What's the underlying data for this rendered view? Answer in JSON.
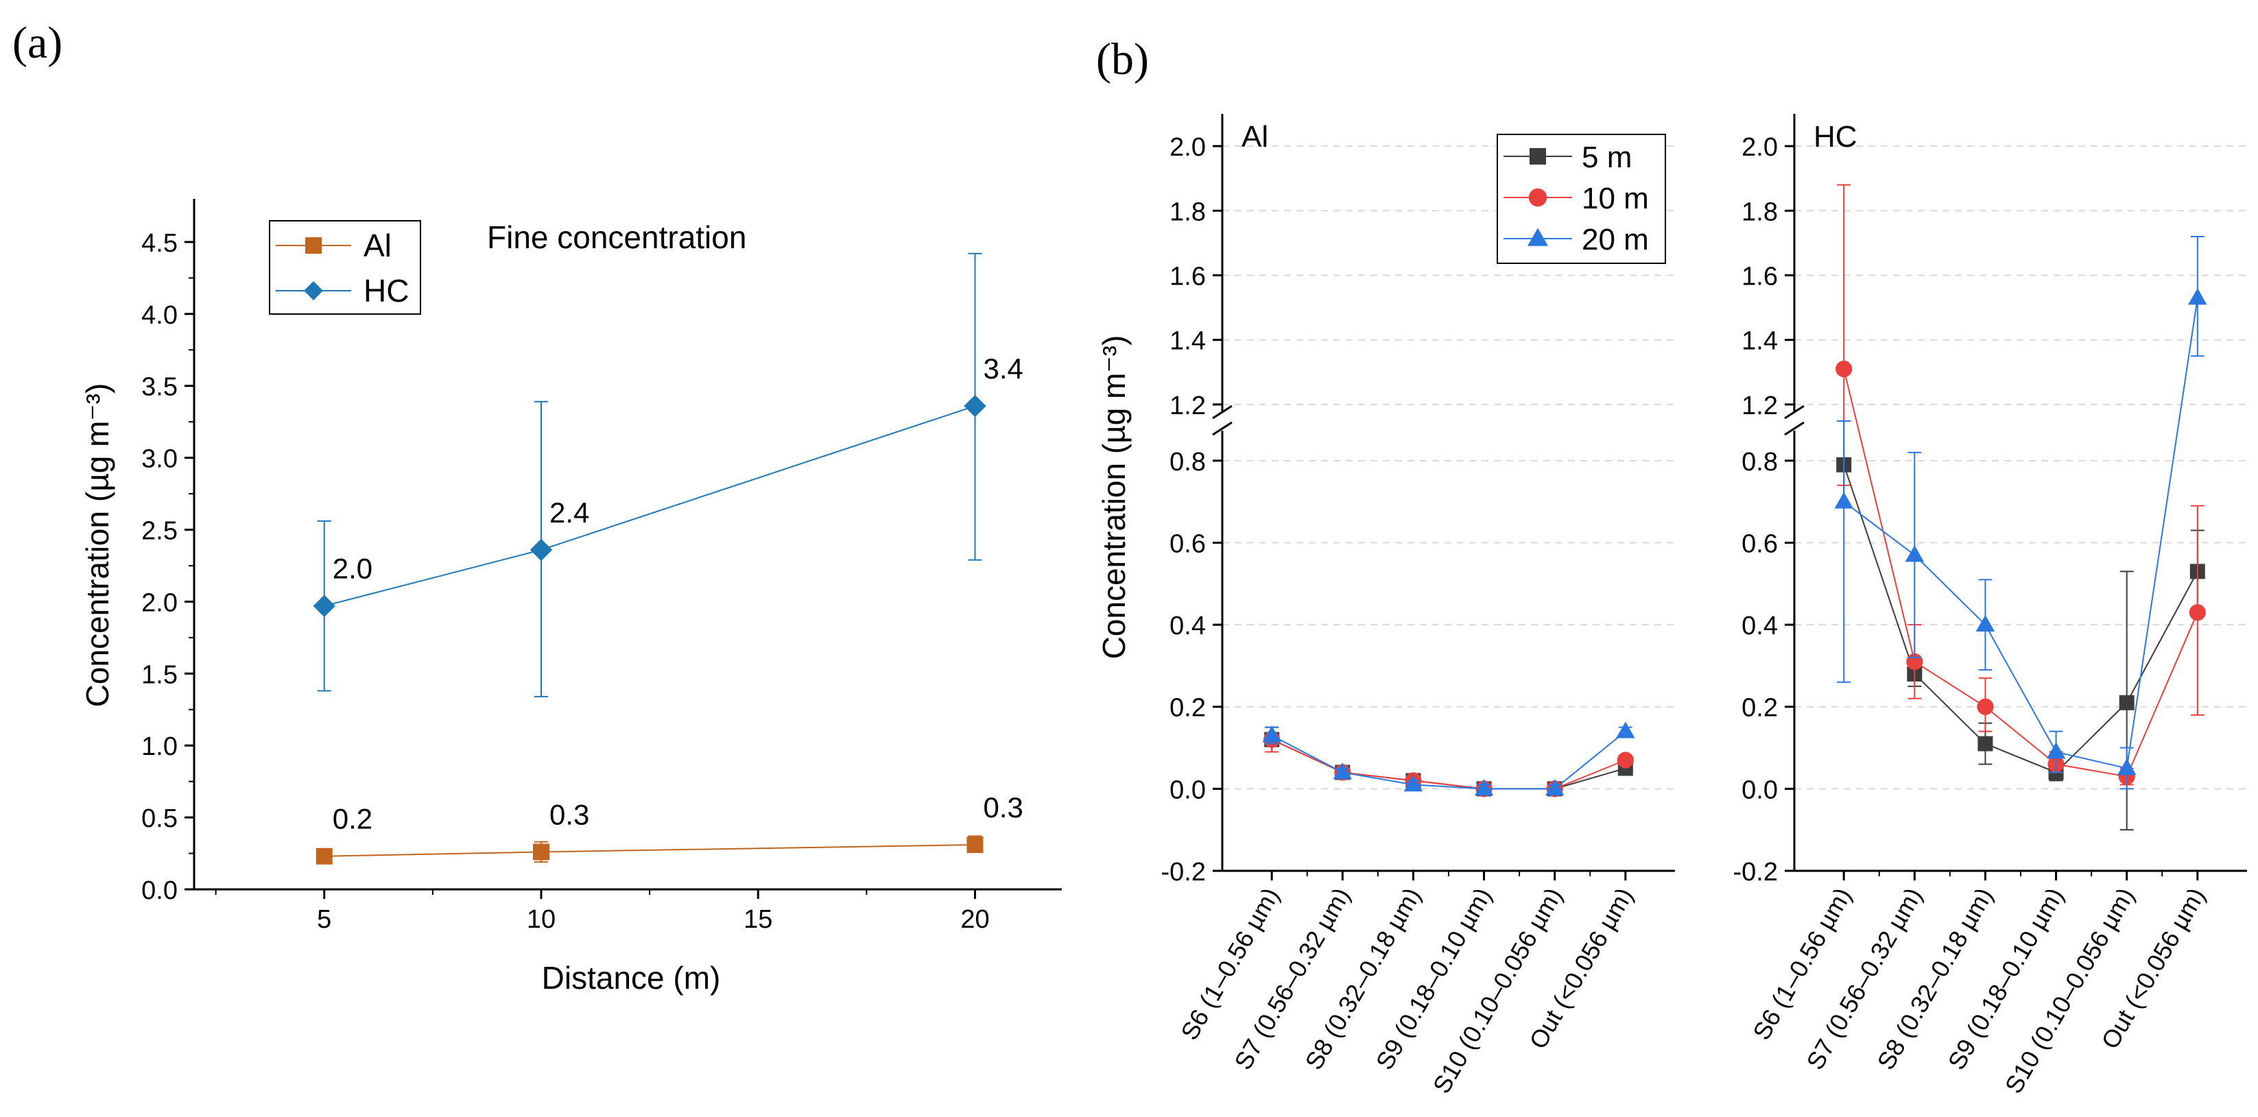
{
  "colors": {
    "al": "#c0651f",
    "hc": "#1f77b4",
    "m5": "#3c3c3c",
    "m10": "#e8403d",
    "m20": "#2b77e0",
    "axis": "#000000",
    "grid": "#d9d9d9"
  },
  "chart_data": [
    {
      "panel": "(a)",
      "type": "line",
      "title": "Fine concentration",
      "xlabel": "Distance (m)",
      "ylabel": "Concentration (µg m⁻³)",
      "xlim": [
        2,
        22
      ],
      "ylim": [
        0,
        4.8
      ],
      "xticks": [
        "5",
        "10",
        "15",
        "20"
      ],
      "yticks": [
        "0.0",
        "0.5",
        "1.0",
        "1.5",
        "2.0",
        "2.5",
        "3.0",
        "3.5",
        "4.0",
        "4.5"
      ],
      "x": [
        5,
        10,
        20
      ],
      "legend": {
        "position": "top-left",
        "entries": [
          "Al",
          "HC"
        ]
      },
      "series": [
        {
          "name": "Al",
          "marker": "square",
          "color_key": "al",
          "values": [
            0.23,
            0.26,
            0.31
          ],
          "err_low": [
            0.2,
            0.19,
            0.26
          ],
          "err_high": [
            0.25,
            0.33,
            0.37
          ],
          "labels": [
            "0.2",
            "0.3",
            "0.3"
          ]
        },
        {
          "name": "HC",
          "marker": "diamond",
          "color_key": "hc",
          "values": [
            1.97,
            2.36,
            3.36
          ],
          "err_low": [
            1.38,
            1.34,
            2.29
          ],
          "err_high": [
            2.56,
            3.39,
            4.42
          ],
          "labels": [
            "2.0",
            "2.4",
            "3.4"
          ]
        }
      ]
    },
    {
      "panel": "(b)",
      "type": "line",
      "ylabel": "Concentration (µg m⁻³)",
      "categories": [
        "S6 (1–0.56 µm)",
        "S7 (0.56–0.32 µm)",
        "S8 (0.32–0.18 µm)",
        "S9 (0.18–0.10 µm)",
        "S10 (0.10–0.056 µm)",
        "Out (<0.056 µm)"
      ],
      "yticks_lower": [
        "-0.2",
        "0.0",
        "0.2",
        "0.4",
        "0.6",
        "0.8"
      ],
      "yticks_upper": [
        "1.2",
        "1.4",
        "1.6",
        "1.8",
        "2.0"
      ],
      "ylim_lower": [
        -0.2,
        0.88
      ],
      "ylim_upper": [
        1.17,
        2.1
      ],
      "axis_break": [
        0.88,
        1.17
      ],
      "legend": {
        "position": "top-right",
        "entries": [
          "5 m",
          "10 m",
          "20 m"
        ]
      },
      "subplots": [
        {
          "label": "Al",
          "series": [
            {
              "name": "5 m",
              "marker": "square",
              "color_key": "m5",
              "values": [
                0.12,
                0.04,
                0.02,
                0.0,
                0.0,
                0.05
              ],
              "err_low": [
                0.09,
                0.03,
                0.01,
                0.0,
                0.0,
                0.04
              ],
              "err_high": [
                0.15,
                0.05,
                0.03,
                0.01,
                0.01,
                0.06
              ]
            },
            {
              "name": "10 m",
              "marker": "circle",
              "color_key": "m10",
              "values": [
                0.12,
                0.04,
                0.02,
                0.0,
                0.0,
                0.07
              ],
              "err_low": [
                0.09,
                0.03,
                0.01,
                0.0,
                0.0,
                0.06
              ],
              "err_high": [
                0.15,
                0.05,
                0.03,
                0.01,
                0.01,
                0.08
              ]
            },
            {
              "name": "20 m",
              "marker": "triangle",
              "color_key": "m20",
              "values": [
                0.13,
                0.04,
                0.01,
                0.0,
                0.0,
                0.14
              ],
              "err_low": [
                0.11,
                0.03,
                0.0,
                0.0,
                0.0,
                0.13
              ],
              "err_high": [
                0.15,
                0.05,
                0.02,
                0.01,
                0.01,
                0.15
              ]
            }
          ]
        },
        {
          "label": "HC",
          "series": [
            {
              "name": "5 m",
              "marker": "square",
              "color_key": "m5",
              "values": [
                0.79,
                0.28,
                0.11,
                0.04,
                0.21,
                0.53
              ],
              "err_low": [
                0.69,
                0.25,
                0.06,
                0.02,
                -0.1,
                0.43
              ],
              "err_high": [
                0.89,
                0.32,
                0.16,
                0.06,
                0.53,
                0.63
              ]
            },
            {
              "name": "10 m",
              "marker": "circle",
              "color_key": "m10",
              "values": [
                1.31,
                0.31,
                0.2,
                0.06,
                0.03,
                0.43
              ],
              "err_low": [
                0.74,
                0.22,
                0.14,
                0.04,
                0.01,
                0.18
              ],
              "err_high": [
                1.88,
                0.4,
                0.27,
                0.09,
                0.05,
                0.69
              ]
            },
            {
              "name": "20 m",
              "marker": "triangle",
              "color_key": "m20",
              "values": [
                0.7,
                0.57,
                0.4,
                0.09,
                0.05,
                1.53
              ],
              "err_low": [
                0.26,
                0.32,
                0.29,
                0.04,
                0.0,
                1.35
              ],
              "err_high": [
                1.14,
                0.82,
                0.51,
                0.14,
                0.1,
                1.72
              ]
            }
          ]
        }
      ]
    }
  ]
}
